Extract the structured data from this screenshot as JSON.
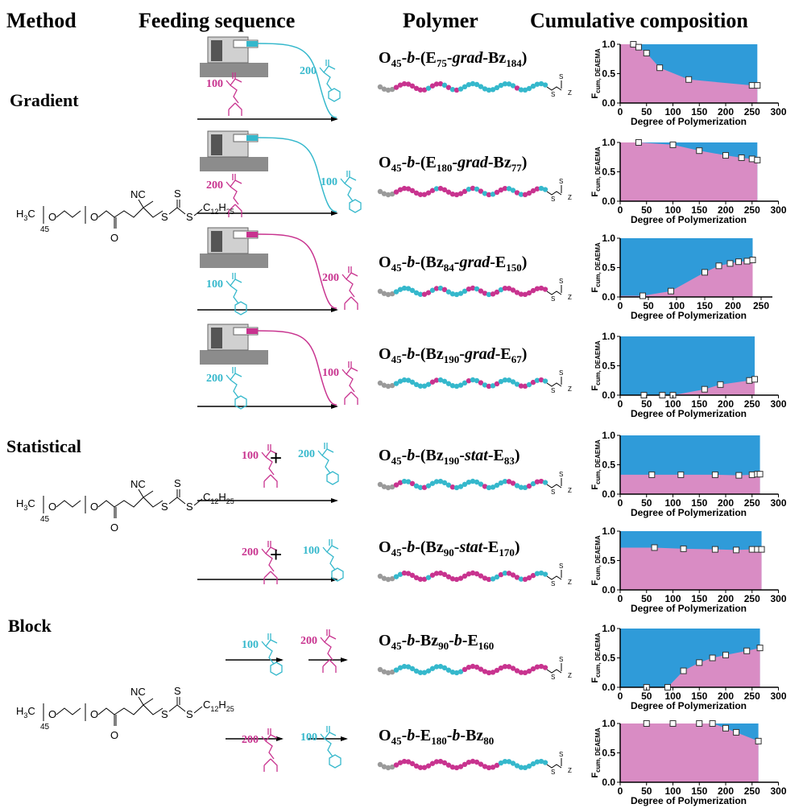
{
  "header": {
    "method": "Method",
    "feeding": "Feeding sequence",
    "polymer": "Polymer",
    "composition": "Cumulative composition"
  },
  "methods": [
    "Gradient",
    "Statistical",
    "Block"
  ],
  "cta": {
    "h": "H",
    "h_sub": "3",
    "c": "C",
    "repeat": "45",
    "o": "O",
    "nc": "NC",
    "s": "S",
    "tail_c": "C",
    "tail_sub1": "12",
    "tail_h": "H",
    "tail_sub2": "25"
  },
  "chain_end": {
    "s": "S",
    "z": "Z"
  },
  "rows": [
    {
      "polymer": [
        {
          "t": "O"
        },
        {
          "t": "45",
          "sub": true
        },
        {
          "t": "-"
        },
        {
          "t": "b",
          "italic": true
        },
        {
          "t": "-(E"
        },
        {
          "t": "75",
          "sub": true
        },
        {
          "t": "-"
        },
        {
          "t": "grad",
          "italic": true
        },
        {
          "t": "-Bz"
        },
        {
          "t": "184",
          "sub": true
        },
        {
          "t": ")"
        }
      ],
      "feed": [
        {
          "amount": 100,
          "color": "#c8338f"
        },
        {
          "amount": 200,
          "color": "#35b8cc"
        }
      ]
    },
    {
      "polymer": [
        {
          "t": "O"
        },
        {
          "t": "45",
          "sub": true
        },
        {
          "t": "-"
        },
        {
          "t": "b",
          "italic": true
        },
        {
          "t": "-(E"
        },
        {
          "t": "180",
          "sub": true
        },
        {
          "t": "-"
        },
        {
          "t": "grad",
          "italic": true
        },
        {
          "t": "-Bz"
        },
        {
          "t": "77",
          "sub": true
        },
        {
          "t": ")"
        }
      ],
      "feed": [
        {
          "amount": 200,
          "color": "#c8338f"
        },
        {
          "amount": 100,
          "color": "#35b8cc"
        }
      ]
    },
    {
      "polymer": [
        {
          "t": "O"
        },
        {
          "t": "45",
          "sub": true
        },
        {
          "t": "-"
        },
        {
          "t": "b",
          "italic": true
        },
        {
          "t": "-(Bz"
        },
        {
          "t": "84",
          "sub": true
        },
        {
          "t": "-"
        },
        {
          "t": "grad",
          "italic": true
        },
        {
          "t": "-E"
        },
        {
          "t": "150",
          "sub": true
        },
        {
          "t": ")"
        }
      ],
      "feed": [
        {
          "amount": 100,
          "color": "#35b8cc"
        },
        {
          "amount": 200,
          "color": "#c8338f"
        }
      ]
    },
    {
      "polymer": [
        {
          "t": "O"
        },
        {
          "t": "45",
          "sub": true
        },
        {
          "t": "-"
        },
        {
          "t": "b",
          "italic": true
        },
        {
          "t": "-(Bz"
        },
        {
          "t": "190",
          "sub": true
        },
        {
          "t": "-"
        },
        {
          "t": "grad",
          "italic": true
        },
        {
          "t": "-E"
        },
        {
          "t": "67",
          "sub": true
        },
        {
          "t": ")"
        }
      ],
      "feed": [
        {
          "amount": 200,
          "color": "#35b8cc"
        },
        {
          "amount": 100,
          "color": "#c8338f"
        }
      ]
    },
    {
      "polymer": [
        {
          "t": "O"
        },
        {
          "t": "45",
          "sub": true
        },
        {
          "t": "-"
        },
        {
          "t": "b",
          "italic": true
        },
        {
          "t": "-(Bz"
        },
        {
          "t": "190",
          "sub": true
        },
        {
          "t": "-"
        },
        {
          "t": "stat",
          "italic": true
        },
        {
          "t": "-E"
        },
        {
          "t": "83",
          "sub": true
        },
        {
          "t": ")"
        }
      ],
      "feed": [
        {
          "amount": 100,
          "color": "#c8338f"
        },
        {
          "amount": 200,
          "color": "#35b8cc"
        }
      ],
      "plus": "+"
    },
    {
      "polymer": [
        {
          "t": "O"
        },
        {
          "t": "45",
          "sub": true
        },
        {
          "t": "-"
        },
        {
          "t": "b",
          "italic": true
        },
        {
          "t": "-(Bz"
        },
        {
          "t": "90",
          "sub": true
        },
        {
          "t": "-"
        },
        {
          "t": "stat",
          "italic": true
        },
        {
          "t": "-E"
        },
        {
          "t": "170",
          "sub": true
        },
        {
          "t": ")"
        }
      ],
      "feed": [
        {
          "amount": 200,
          "color": "#c8338f"
        },
        {
          "amount": 100,
          "color": "#35b8cc"
        }
      ],
      "plus": "+"
    },
    {
      "polymer": [
        {
          "t": "O"
        },
        {
          "t": "45",
          "sub": true
        },
        {
          "t": "-"
        },
        {
          "t": "b",
          "italic": true
        },
        {
          "t": "-Bz"
        },
        {
          "t": "90",
          "sub": true
        },
        {
          "t": "-"
        },
        {
          "t": "b",
          "italic": true
        },
        {
          "t": "-E"
        },
        {
          "t": "160",
          "sub": true
        }
      ],
      "feed": [
        {
          "amount": 100,
          "color": "#35b8cc"
        },
        {
          "amount": 200,
          "color": "#c8338f"
        }
      ]
    },
    {
      "polymer": [
        {
          "t": "O"
        },
        {
          "t": "45",
          "sub": true
        },
        {
          "t": "-"
        },
        {
          "t": "b",
          "italic": true
        },
        {
          "t": "-E"
        },
        {
          "t": "180",
          "sub": true
        },
        {
          "t": "-"
        },
        {
          "t": "b",
          "italic": true
        },
        {
          "t": "-Bz"
        },
        {
          "t": "80",
          "sub": true
        }
      ],
      "feed": [
        {
          "amount": 200,
          "color": "#c8338f"
        },
        {
          "amount": 100,
          "color": "#35b8cc"
        }
      ]
    }
  ],
  "chart_data": [
    {
      "type": "area",
      "ylabel": "F",
      "ylabel_sub": "cum, DEAEMA",
      "xlabel": "Degree of Polymerization",
      "xlim": [
        0,
        300
      ],
      "ylim": [
        0,
        1
      ],
      "xticks": [
        0,
        50,
        100,
        150,
        200,
        250,
        300
      ],
      "yticks": [
        {
          "value": 0,
          "label": "0.0"
        },
        {
          "value": 0.5,
          "label": "0.5"
        },
        {
          "value": 1,
          "label": "1.0"
        }
      ],
      "x": [
        25,
        35,
        50,
        75,
        130,
        250,
        260
      ],
      "values": [
        1.0,
        0.95,
        0.85,
        0.6,
        0.4,
        0.3,
        0.3
      ],
      "area_color": "#d98cc4",
      "background_color": "#2f9bd9"
    },
    {
      "type": "area",
      "ylabel": "F",
      "ylabel_sub": "cum, DEAEMA",
      "xlabel": "Degree of Polymerization",
      "xlim": [
        0,
        300
      ],
      "ylim": [
        0,
        1
      ],
      "xticks": [
        0,
        50,
        100,
        150,
        200,
        250,
        300
      ],
      "yticks": [
        {
          "value": 0,
          "label": "0.0"
        },
        {
          "value": 0.5,
          "label": "0.5"
        },
        {
          "value": 1,
          "label": "1.0"
        }
      ],
      "x": [
        35,
        100,
        150,
        200,
        230,
        250,
        260
      ],
      "values": [
        1.0,
        0.96,
        0.86,
        0.78,
        0.74,
        0.72,
        0.7
      ],
      "area_color": "#d98cc4",
      "background_color": "#2f9bd9"
    },
    {
      "type": "area",
      "ylabel": "F",
      "ylabel_sub": "cum, DEAEMA",
      "xlabel": "Degree of Polymerization",
      "xlim": [
        0,
        270
      ],
      "ylim": [
        0,
        1
      ],
      "xticks": [
        0,
        50,
        100,
        150,
        200,
        250
      ],
      "yticks": [
        {
          "value": 0,
          "label": "0.0"
        },
        {
          "value": 0.5,
          "label": "0.5"
        },
        {
          "value": 1,
          "label": "1.0"
        }
      ],
      "x": [
        40,
        90,
        150,
        175,
        195,
        210,
        225,
        235
      ],
      "values": [
        0.02,
        0.1,
        0.42,
        0.53,
        0.57,
        0.6,
        0.61,
        0.63
      ],
      "area_color": "#d98cc4",
      "background_color": "#2f9bd9"
    },
    {
      "type": "area",
      "ylabel": "F",
      "ylabel_sub": "cum, DEAEMA",
      "xlabel": "Degree of Polymerization",
      "xlim": [
        0,
        300
      ],
      "ylim": [
        0,
        1
      ],
      "xticks": [
        0,
        50,
        100,
        150,
        200,
        250,
        300
      ],
      "yticks": [
        {
          "value": 0,
          "label": "0.0"
        },
        {
          "value": 0.5,
          "label": "0.5"
        },
        {
          "value": 1,
          "label": "1.0"
        }
      ],
      "x": [
        45,
        80,
        100,
        160,
        190,
        245,
        255
      ],
      "values": [
        0.0,
        0.0,
        0.0,
        0.1,
        0.18,
        0.25,
        0.27
      ],
      "area_color": "#d98cc4",
      "background_color": "#2f9bd9"
    },
    {
      "type": "area",
      "ylabel": "F",
      "ylabel_sub": "cum, DEAEMA",
      "xlabel": "Degree of Polymerization",
      "xlim": [
        0,
        300
      ],
      "ylim": [
        0,
        1
      ],
      "xticks": [
        0,
        50,
        100,
        150,
        200,
        250,
        300
      ],
      "yticks": [
        {
          "value": 0,
          "label": "0.0"
        },
        {
          "value": 0.5,
          "label": "0.5"
        },
        {
          "value": 1,
          "label": "1.0"
        }
      ],
      "x": [
        60,
        115,
        180,
        225,
        250,
        260,
        265
      ],
      "values": [
        0.33,
        0.33,
        0.33,
        0.32,
        0.33,
        0.34,
        0.34
      ],
      "area_color": "#d98cc4",
      "background_color": "#2f9bd9"
    },
    {
      "type": "area",
      "ylabel": "F",
      "ylabel_sub": "cum, DEAEMA",
      "xlabel": "Degree of Polymerization",
      "xlim": [
        0,
        300
      ],
      "ylim": [
        0,
        1
      ],
      "xticks": [
        0,
        50,
        100,
        150,
        200,
        250,
        300
      ],
      "yticks": [
        {
          "value": 0,
          "label": "0.0"
        },
        {
          "value": 0.5,
          "label": "0.5"
        },
        {
          "value": 1,
          "label": "1.0"
        }
      ],
      "x": [
        65,
        120,
        180,
        220,
        250,
        260,
        268
      ],
      "values": [
        0.72,
        0.7,
        0.69,
        0.68,
        0.69,
        0.69,
        0.69
      ],
      "area_color": "#d98cc4",
      "background_color": "#2f9bd9"
    },
    {
      "type": "area",
      "ylabel": "F",
      "ylabel_sub": "cum, DEAEMA",
      "xlabel": "Degree of Polymerization",
      "xlim": [
        0,
        300
      ],
      "ylim": [
        0,
        1
      ],
      "xticks": [
        0,
        50,
        100,
        150,
        200,
        250,
        300
      ],
      "yticks": [
        {
          "value": 0,
          "label": "0.0"
        },
        {
          "value": 0.5,
          "label": "0.5"
        },
        {
          "value": 1,
          "label": "1.0"
        }
      ],
      "x": [
        50,
        90,
        120,
        150,
        175,
        200,
        240,
        265
      ],
      "values": [
        0.0,
        0.0,
        0.28,
        0.42,
        0.5,
        0.55,
        0.62,
        0.67
      ],
      "area_color": "#d98cc4",
      "background_color": "#2f9bd9"
    },
    {
      "type": "area",
      "ylabel": "F",
      "ylabel_sub": "cum, DEAEMA",
      "xlabel": "Degree of Polymerization",
      "xlim": [
        0,
        300
      ],
      "ylim": [
        0,
        1
      ],
      "xticks": [
        0,
        50,
        100,
        150,
        200,
        250,
        300
      ],
      "yticks": [
        {
          "value": 0,
          "label": "0.0"
        },
        {
          "value": 0.5,
          "label": "0.5"
        },
        {
          "value": 1,
          "label": "1.0"
        }
      ],
      "x": [
        50,
        100,
        150,
        175,
        200,
        220,
        262
      ],
      "values": [
        1.0,
        1.0,
        1.0,
        1.0,
        0.92,
        0.85,
        0.7
      ],
      "area_color": "#d98cc4",
      "background_color": "#2f9bd9"
    }
  ]
}
